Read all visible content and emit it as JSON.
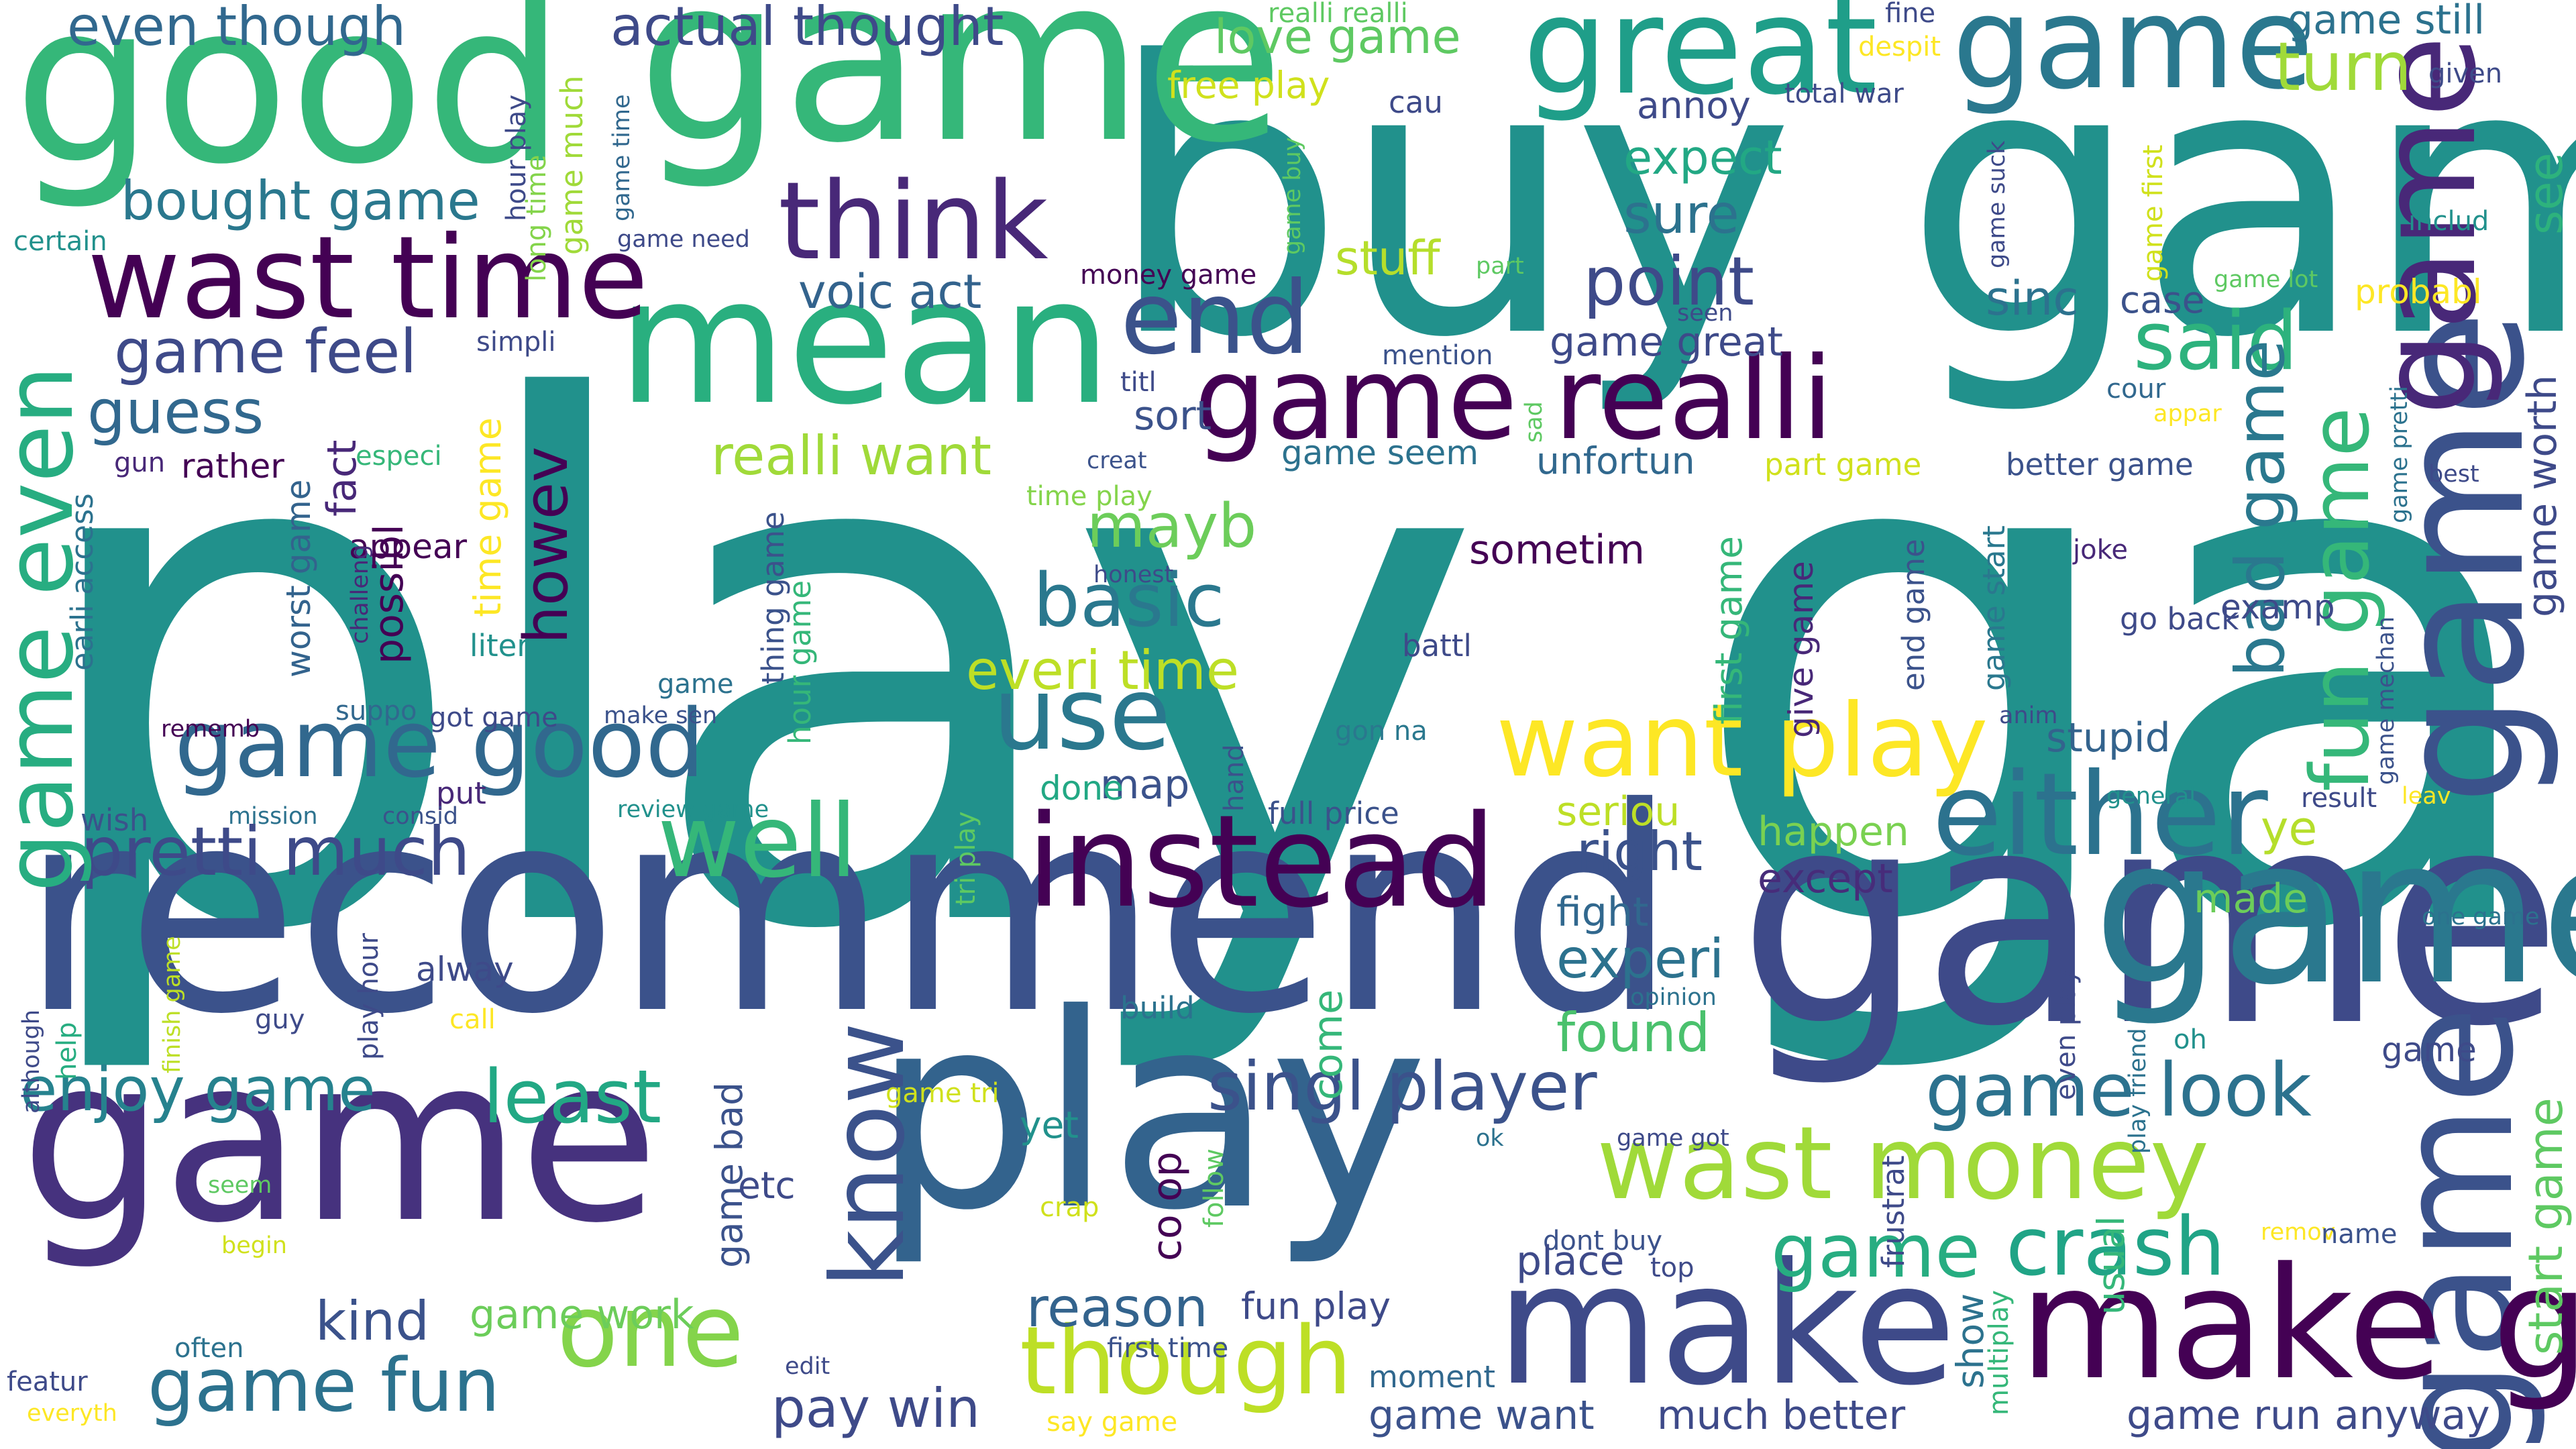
{
  "words": [
    {
      "text": "play game",
      "color": "#21918c"
    },
    {
      "text": "buy game",
      "color": "#21918c"
    },
    {
      "text": "recommend",
      "color": "#3b528b"
    },
    {
      "text": "game",
      "color": "#3e4a89"
    },
    {
      "text": "game",
      "color": "#35b779"
    },
    {
      "text": "play",
      "color": "#33638d"
    },
    {
      "text": "game",
      "color": "#46327e"
    },
    {
      "text": "good",
      "color": "#35b779"
    },
    {
      "text": "game",
      "color": "#2a788e"
    },
    {
      "text": "mean",
      "color": "#29af7f"
    },
    {
      "text": "great",
      "color": "#1f9e89"
    },
    {
      "text": "game",
      "color": "#2a788e"
    },
    {
      "text": "game",
      "color": "#3b528b"
    },
    {
      "text": "game",
      "color": "#3b528b"
    },
    {
      "text": "game",
      "color": "#482878"
    },
    {
      "text": "make",
      "color": "#3e4a89"
    },
    {
      "text": "make game",
      "color": "#440154"
    },
    {
      "text": "instead",
      "color": "#440154"
    },
    {
      "text": "wast time",
      "color": "#440154"
    },
    {
      "text": "game realli",
      "color": "#440154"
    },
    {
      "text": "think",
      "color": "#482878"
    },
    {
      "text": "either",
      "color": "#2c728e"
    },
    {
      "text": "wast money",
      "color": "#a0da39"
    },
    {
      "text": "want play",
      "color": "#fde725"
    },
    {
      "text": "game good",
      "color": "#31688e"
    },
    {
      "text": "pretti much",
      "color": "#3e4a89"
    },
    {
      "text": "well",
      "color": "#35b779"
    },
    {
      "text": "one",
      "color": "#84d44b"
    },
    {
      "text": "though",
      "color": "#bddf26"
    },
    {
      "text": "game fun",
      "color": "#2c728e"
    },
    {
      "text": "know",
      "color": "#3b528b"
    },
    {
      "text": "use",
      "color": "#2a788e"
    },
    {
      "text": "end",
      "color": "#3b528b"
    },
    {
      "text": "game even",
      "color": "#27ad81"
    },
    {
      "text": "singl player",
      "color": "#3b528b"
    },
    {
      "text": "enjoy game",
      "color": "#26828e"
    },
    {
      "text": "game look",
      "color": "#2c728e"
    },
    {
      "text": "crash",
      "color": "#20a486"
    },
    {
      "text": "game",
      "color": "#27ad81"
    },
    {
      "text": "least",
      "color": "#22a884"
    },
    {
      "text": "basic",
      "color": "#2a788e"
    },
    {
      "text": "said",
      "color": "#2db27d"
    },
    {
      "text": "point",
      "color": "#3e4a89"
    },
    {
      "text": "turn",
      "color": "#a0da39"
    },
    {
      "text": "game feel",
      "color": "#3e4a89"
    },
    {
      "text": "bought game",
      "color": "#2a788e"
    },
    {
      "text": "even though",
      "color": "#31688e"
    },
    {
      "text": "actual thought",
      "color": "#3e4a89"
    },
    {
      "text": "reason",
      "color": "#33638d"
    },
    {
      "text": "pay win",
      "color": "#3e4a89"
    },
    {
      "text": "guess",
      "color": "#31688e"
    },
    {
      "text": "mayb",
      "color": "#6ccd5a"
    },
    {
      "text": "everi time",
      "color": "#bddf26"
    },
    {
      "text": "voic act",
      "color": "#33638d"
    },
    {
      "text": "expect",
      "color": "#22a884"
    },
    {
      "text": "sure",
      "color": "#2c728e"
    },
    {
      "text": "stuff",
      "color": "#b5de2b"
    },
    {
      "text": "right",
      "color": "#3b528b"
    },
    {
      "text": "experi",
      "color": "#2c728e"
    },
    {
      "text": "found",
      "color": "#4ac16d"
    },
    {
      "text": "kind",
      "color": "#3b528b"
    },
    {
      "text": "game work",
      "color": "#6ccd5a"
    },
    {
      "text": "much better",
      "color": "#3e4a89"
    },
    {
      "text": "game run",
      "color": "#3e4a89"
    },
    {
      "text": "anyway",
      "color": "#3e4a89"
    },
    {
      "text": "game want",
      "color": "#3b528b"
    },
    {
      "text": "realli want",
      "color": "#a0da39"
    },
    {
      "text": "howev",
      "color": "#440154"
    },
    {
      "text": "fun game",
      "color": "#35b779"
    },
    {
      "text": "bad game",
      "color": "#2a788e"
    },
    {
      "text": "start game",
      "color": "#5ec962"
    },
    {
      "text": "game worth",
      "color": "#3e4a89"
    },
    {
      "text": "see",
      "color": "#2db27d"
    },
    {
      "text": "game still",
      "color": "#2c728e"
    },
    {
      "text": "love game",
      "color": "#5ec962"
    },
    {
      "text": "realli realli",
      "color": "#5ec962"
    },
    {
      "text": "stupid",
      "color": "#33638d"
    },
    {
      "text": "sometim",
      "color": "#440154"
    },
    {
      "text": "map",
      "color": "#3b528b"
    },
    {
      "text": "done",
      "color": "#22a884"
    },
    {
      "text": "seriou",
      "color": "#bddf26"
    },
    {
      "text": "happen",
      "color": "#7ad151"
    },
    {
      "text": "except",
      "color": "#472c7a"
    },
    {
      "text": "fight",
      "color": "#31688e"
    },
    {
      "text": "ye",
      "color": "#b5de2b"
    },
    {
      "text": "made",
      "color": "#6ccd5a"
    },
    {
      "text": "sinc",
      "color": "#2c728e"
    },
    {
      "text": "case",
      "color": "#3b528b"
    },
    {
      "text": "probabl",
      "color": "#fde725"
    },
    {
      "text": "sort",
      "color": "#3b528b"
    },
    {
      "text": "titl",
      "color": "#3e4a89"
    },
    {
      "text": "game seem",
      "color": "#2c728e"
    },
    {
      "text": "unfortun",
      "color": "#31688e"
    },
    {
      "text": "part game",
      "color": "#d0e11c"
    },
    {
      "text": "better game",
      "color": "#3b528b"
    },
    {
      "text": "game great",
      "color": "#3e4a89"
    },
    {
      "text": "possibl",
      "color": "#440154"
    },
    {
      "text": "fact",
      "color": "#482878"
    },
    {
      "text": "time game",
      "color": "#fde725"
    },
    {
      "text": "rather",
      "color": "#440154"
    },
    {
      "text": "appear",
      "color": "#440154"
    },
    {
      "text": "worst game",
      "color": "#33638d"
    },
    {
      "text": "earli access",
      "color": "#2c728e"
    },
    {
      "text": "gun",
      "color": "#482878"
    },
    {
      "text": "especi",
      "color": "#35b779"
    },
    {
      "text": "liter",
      "color": "#21918c"
    },
    {
      "text": "hour game",
      "color": "#35b779"
    },
    {
      "text": "thing game",
      "color": "#3b528b"
    },
    {
      "text": "first game",
      "color": "#35b779"
    },
    {
      "text": "give game",
      "color": "#482878"
    },
    {
      "text": "end game",
      "color": "#3b528b"
    },
    {
      "text": "game start",
      "color": "#2a788e"
    },
    {
      "text": "examp",
      "color": "#3e4a89"
    },
    {
      "text": "go back",
      "color": "#3e4a89"
    },
    {
      "text": "joke",
      "color": "#482878"
    },
    {
      "text": "battl",
      "color": "#3e4a89"
    },
    {
      "text": "gon na",
      "color": "#2a788e"
    },
    {
      "text": "hand",
      "color": "#3b528b"
    },
    {
      "text": "full price",
      "color": "#3b528b"
    },
    {
      "text": "build",
      "color": "#2c728e"
    },
    {
      "text": "tri play",
      "color": "#5ec962"
    },
    {
      "text": "help",
      "color": "#27ad81"
    },
    {
      "text": "guy",
      "color": "#3e4a89"
    },
    {
      "text": "call",
      "color": "#fde725"
    },
    {
      "text": "alway",
      "color": "#3e4a89"
    },
    {
      "text": "put",
      "color": "#482878"
    },
    {
      "text": "wish",
      "color": "#3b528b"
    },
    {
      "text": "mission",
      "color": "#2c728e"
    },
    {
      "text": "consid",
      "color": "#3b528b"
    },
    {
      "text": "review game",
      "color": "#21918c"
    },
    {
      "text": "rememb",
      "color": "#440154"
    },
    {
      "text": "suppo",
      "color": "#31688e"
    },
    {
      "text": "got game",
      "color": "#3e4a89"
    },
    {
      "text": "make sen",
      "color": "#3b528b"
    },
    {
      "text": "challeng",
      "color": "#482878"
    },
    {
      "text": "play hour",
      "color": "#3e4a89"
    },
    {
      "text": "finish game",
      "color": "#bddf26"
    },
    {
      "text": "although",
      "color": "#3e4a89"
    },
    {
      "text": "game tri",
      "color": "#d0e11c"
    },
    {
      "text": "game bad",
      "color": "#3b528b"
    },
    {
      "text": "etc",
      "color": "#3e4a89"
    },
    {
      "text": "yet",
      "color": "#21918c"
    },
    {
      "text": "co op",
      "color": "#440154"
    },
    {
      "text": "crap",
      "color": "#d0e11c"
    },
    {
      "text": "follow",
      "color": "#5ec962"
    },
    {
      "text": "come",
      "color": "#35b779"
    },
    {
      "text": "fun play",
      "color": "#3e4a89"
    },
    {
      "text": "first time",
      "color": "#3b528b"
    },
    {
      "text": "moment",
      "color": "#31688e"
    },
    {
      "text": "dont buy",
      "color": "#3b528b"
    },
    {
      "text": "place",
      "color": "#3e4a89"
    },
    {
      "text": "top",
      "color": "#3e4a89"
    },
    {
      "text": "game got",
      "color": "#3e4a89"
    },
    {
      "text": "ok",
      "color": "#2c728e"
    },
    {
      "text": "opinion",
      "color": "#2c728e"
    },
    {
      "text": "frustrat",
      "color": "#3e4a89"
    },
    {
      "text": "multiplay",
      "color": "#35b779"
    },
    {
      "text": "show",
      "color": "#2c728e"
    },
    {
      "text": "usual",
      "color": "#35b779"
    },
    {
      "text": "even play",
      "color": "#3e4a89"
    },
    {
      "text": "play friend",
      "color": "#2c728e"
    },
    {
      "text": "oh",
      "color": "#21918c"
    },
    {
      "text": "remov",
      "color": "#fde725"
    },
    {
      "text": "name",
      "color": "#3b528b"
    },
    {
      "text": "general",
      "color": "#21918c"
    },
    {
      "text": "result",
      "color": "#3e4a89"
    },
    {
      "text": "leav",
      "color": "#fde725"
    },
    {
      "text": "one game",
      "color": "#2c728e"
    },
    {
      "text": "anim",
      "color": "#3e4a89"
    },
    {
      "text": "game mechan",
      "color": "#3b528b"
    },
    {
      "text": "game pretti",
      "color": "#2c728e"
    },
    {
      "text": "best",
      "color": "#3e4a89"
    },
    {
      "text": "includ",
      "color": "#21918c"
    },
    {
      "text": "given",
      "color": "#3e4a89"
    },
    {
      "text": "appar",
      "color": "#fde725"
    },
    {
      "text": "cour",
      "color": "#31688e"
    },
    {
      "text": "creat",
      "color": "#3b528b"
    },
    {
      "text": "honest",
      "color": "#3e4a89"
    },
    {
      "text": "sad",
      "color": "#5ec962"
    },
    {
      "text": "seen",
      "color": "#3e4a89"
    },
    {
      "text": "part",
      "color": "#5ec962"
    },
    {
      "text": "mention",
      "color": "#3b528b"
    },
    {
      "text": "money game",
      "color": "#440154"
    },
    {
      "text": "annoy",
      "color": "#3e4a89"
    },
    {
      "text": "total war",
      "color": "#3e4a89"
    },
    {
      "text": "despit",
      "color": "#fde725"
    },
    {
      "text": "fine",
      "color": "#3e4a89"
    },
    {
      "text": "game first",
      "color": "#d0e11c"
    },
    {
      "text": "game suck",
      "color": "#3e4a89"
    },
    {
      "text": "game lot",
      "color": "#5ec962"
    },
    {
      "text": "game buy",
      "color": "#5ec962"
    },
    {
      "text": "game time",
      "color": "#31688e"
    },
    {
      "text": "cau",
      "color": "#3e4a89"
    },
    {
      "text": "free play",
      "color": "#d0e11c"
    },
    {
      "text": "hour play",
      "color": "#3e4a89"
    },
    {
      "text": "long time",
      "color": "#84d44b"
    },
    {
      "text": "game much",
      "color": "#a0da39"
    },
    {
      "text": "game need",
      "color": "#3e4a89"
    },
    {
      "text": "certain",
      "color": "#21918c"
    },
    {
      "text": "simpli",
      "color": "#3e4a89"
    },
    {
      "text": "time play",
      "color": "#84d44b"
    },
    {
      "text": "game",
      "color": "#2c728e"
    },
    {
      "text": "featur",
      "color": "#3e4a89"
    },
    {
      "text": "everyth",
      "color": "#fde725"
    },
    {
      "text": "often",
      "color": "#2c728e"
    },
    {
      "text": "begin",
      "color": "#d0e11c"
    },
    {
      "text": "seem",
      "color": "#5ec962"
    },
    {
      "text": "edit",
      "color": "#3e4a89"
    },
    {
      "text": "say game",
      "color": "#fde725"
    },
    {
      "text": "game",
      "color": "#3e4a89"
    }
  ]
}
